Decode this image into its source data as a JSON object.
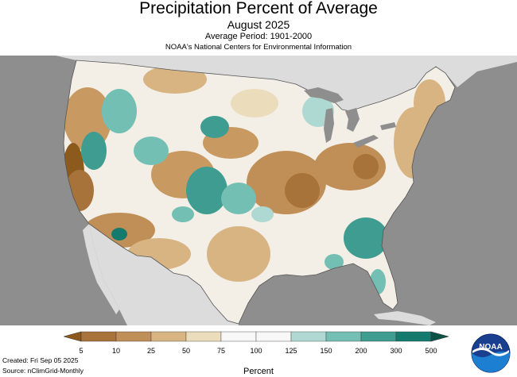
{
  "header": {
    "title": "Precipitation Percent of Average",
    "subtitle": "August 2025",
    "period": "Average Period: 1901-2000",
    "source_line": "NOAA's National Centers for Environmental Information"
  },
  "legend": {
    "title": "Percent",
    "ticks": [
      "5",
      "10",
      "25",
      "50",
      "75",
      "100",
      "125",
      "150",
      "200",
      "300",
      "500"
    ],
    "colors": [
      "#8c5a1c",
      "#a8733a",
      "#bf8f57",
      "#d8b482",
      "#ebdcbc",
      "#f7f7f7",
      "#f7f7f7",
      "#aed9d2",
      "#73bfb4",
      "#3f9c90",
      "#157a6e",
      "#0b5348"
    ]
  },
  "footer": {
    "created": "Created: Fri Sep 05 2025",
    "source": "Source: nClimGrid-Monthly"
  },
  "logo": {
    "text": "NOAA"
  },
  "map": {
    "background": "#8e8e8e",
    "canada_mexico_fill": "#dcdcdc",
    "lakes_fill": "#8e8e8e"
  }
}
